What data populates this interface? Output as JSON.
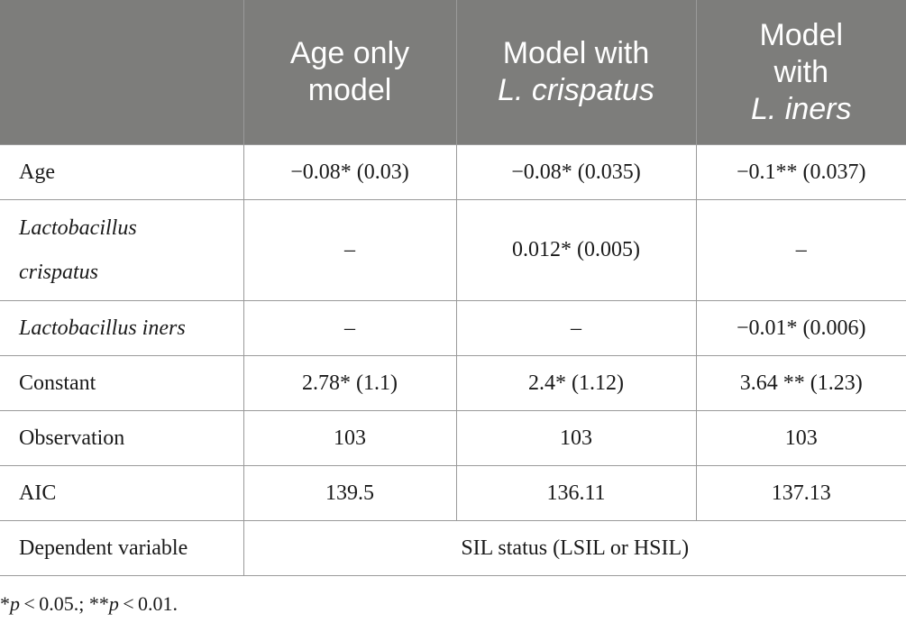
{
  "header": {
    "corner": "",
    "col1": {
      "line1": "Age only",
      "line2": "model"
    },
    "col2": {
      "line1": "Model with",
      "line2_italic": "L. crispatus"
    },
    "col3": {
      "line1": "Model",
      "line2": "with",
      "line3_italic": "L. iners"
    }
  },
  "rows": [
    {
      "label": "Age",
      "label_italic": false,
      "values": [
        "−0.08* (0.03)",
        "−0.08* (0.035)",
        "−0.1** (0.037)"
      ]
    },
    {
      "label_line1": "Lactobacillus",
      "label_line2": "crispatus",
      "label_italic": true,
      "values": [
        "–",
        "0.012* (0.005)",
        "–"
      ]
    },
    {
      "label": "Lactobacillus iners",
      "label_italic": true,
      "values": [
        "–",
        "–",
        "−0.01* (0.006)"
      ]
    },
    {
      "label": "Constant",
      "label_italic": false,
      "values": [
        "2.78* (1.1)",
        "2.4* (1.12)",
        "3.64 ** (1.23)"
      ]
    },
    {
      "label": "Observation",
      "label_italic": false,
      "values": [
        "103",
        "103",
        "103"
      ]
    },
    {
      "label": "AIC",
      "label_italic": false,
      "values": [
        "139.5",
        "136.11",
        "137.13"
      ]
    }
  ],
  "dependent": {
    "label": "Dependent variable",
    "value": "SIL status (LSIL or HSIL)"
  },
  "footnote": {
    "star1": "*",
    "p1": "p",
    "t1": " < 0.05.; ",
    "star2": "**",
    "p2": "p",
    "t2": " < 0.01."
  }
}
